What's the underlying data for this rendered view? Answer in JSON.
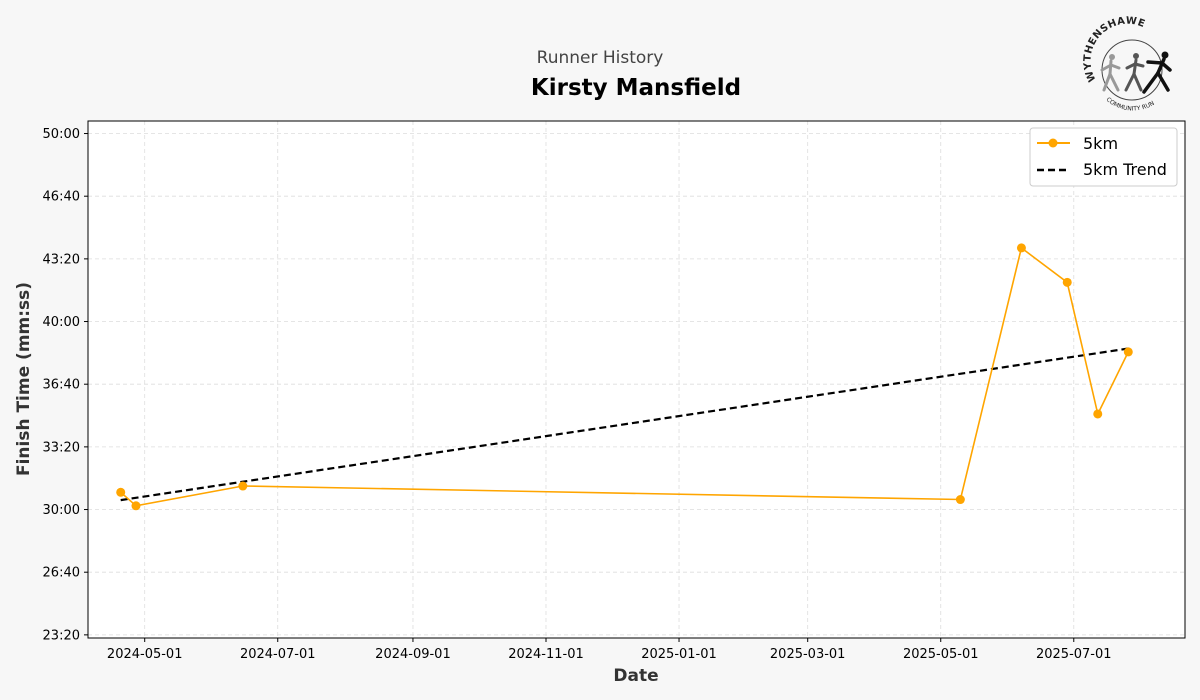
{
  "header": {
    "subtitle": "Runner History",
    "title": "Kirsty Mansfield"
  },
  "logo": {
    "arc_top": "WYTHENSHAWE",
    "arc_bottom": "COMMUNITY RUN"
  },
  "chart_data": {
    "type": "line",
    "subtitle": "Runner History",
    "title": "Kirsty Mansfield",
    "xlabel": "Date",
    "ylabel": "Finish Time (mm:ss)",
    "ylim_seconds": [
      1390,
      3040
    ],
    "y_ticks_seconds": [
      1400,
      1600,
      1800,
      2000,
      2200,
      2400,
      2600,
      2800,
      3000
    ],
    "y_tick_labels": [
      "23:20",
      "26:40",
      "30:00",
      "33:20",
      "36:40",
      "40:00",
      "43:20",
      "46:40",
      "50:00"
    ],
    "x_range": [
      "2024-04-05",
      "2025-08-21"
    ],
    "x_tick_labels": [
      "2024-05-01",
      "2024-07-01",
      "2024-09-01",
      "2024-11-01",
      "2025-01-01",
      "2025-03-01",
      "2025-05-01",
      "2025-07-01"
    ],
    "grid": true,
    "legend_position": "top-right",
    "series": [
      {
        "name": "5km",
        "style": "line-marker",
        "color": "#ffa500",
        "points": [
          {
            "x": "2024-04-20",
            "y_seconds": 1855
          },
          {
            "x": "2024-04-27",
            "y_seconds": 1812
          },
          {
            "x": "2024-06-15",
            "y_seconds": 1875
          },
          {
            "x": "2025-05-10",
            "y_seconds": 1832
          },
          {
            "x": "2025-06-07",
            "y_seconds": 2635
          },
          {
            "x": "2025-06-28",
            "y_seconds": 2525
          },
          {
            "x": "2025-07-12",
            "y_seconds": 2105
          },
          {
            "x": "2025-07-26",
            "y_seconds": 2303
          }
        ]
      },
      {
        "name": "5km Trend",
        "style": "dashed",
        "color": "#000000",
        "points": [
          {
            "x": "2024-04-20",
            "y_seconds": 1830
          },
          {
            "x": "2025-07-26",
            "y_seconds": 2314
          }
        ]
      }
    ]
  }
}
